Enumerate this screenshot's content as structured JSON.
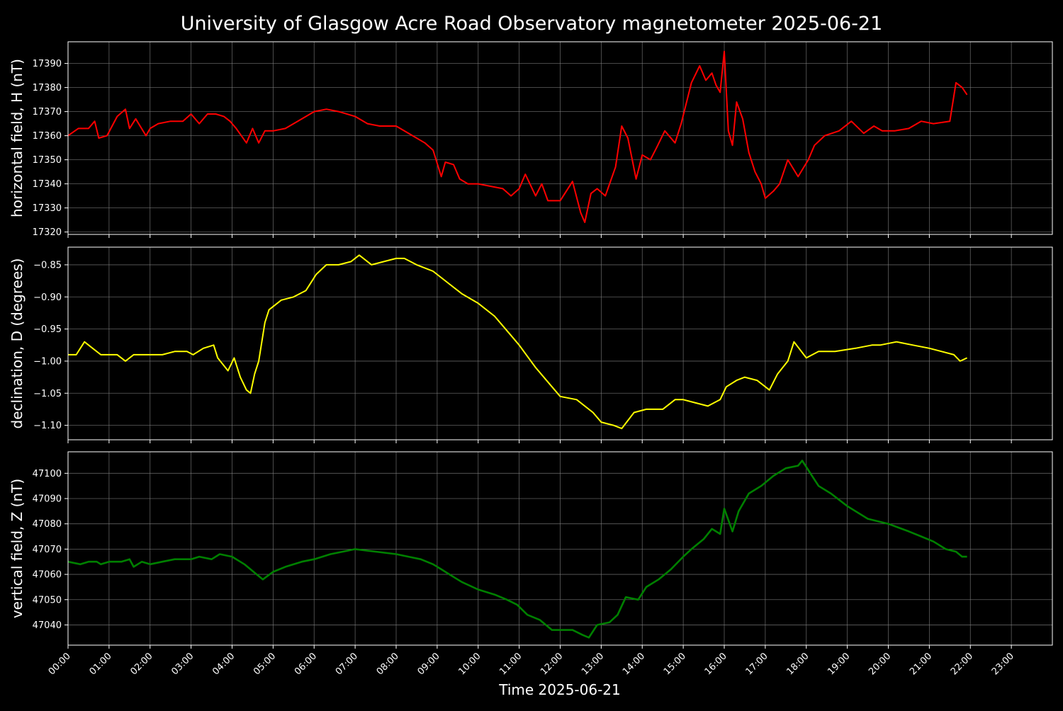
{
  "figure": {
    "title": "University of Glasgow Acre Road Observatory magnetometer 2025-06-21",
    "xlabel": "Time 2025-06-21",
    "background": "#000000",
    "foreground": "#ffffff",
    "grid_color": "#808080"
  },
  "chart_data": [
    {
      "type": "line",
      "ylabel": "horizontal field, H (nT)",
      "color": "#ff0000",
      "grid": true,
      "xlim": [
        0,
        24
      ],
      "ylim": [
        17319,
        17399
      ],
      "yticks": [
        17320,
        17330,
        17340,
        17350,
        17360,
        17370,
        17380,
        17390
      ],
      "xticks": [
        "00:00",
        "01:00",
        "02:00",
        "03:00",
        "04:00",
        "05:00",
        "06:00",
        "07:00",
        "08:00",
        "09:00",
        "10:00",
        "11:00",
        "12:00",
        "13:00",
        "14:00",
        "15:00",
        "16:00",
        "17:00",
        "18:00",
        "19:00",
        "20:00",
        "21:00",
        "22:00",
        "23:00"
      ],
      "x": [
        0.0,
        0.25,
        0.5,
        0.65,
        0.75,
        0.95,
        1.2,
        1.4,
        1.5,
        1.65,
        1.9,
        2.0,
        2.2,
        2.5,
        2.8,
        3.0,
        3.2,
        3.4,
        3.6,
        3.8,
        3.95,
        4.1,
        4.35,
        4.5,
        4.65,
        4.8,
        5.0,
        5.3,
        5.6,
        6.0,
        6.3,
        6.6,
        7.0,
        7.3,
        7.6,
        8.0,
        8.4,
        8.7,
        8.9,
        9.1,
        9.2,
        9.4,
        9.55,
        9.75,
        10.0,
        10.3,
        10.6,
        10.8,
        11.0,
        11.15,
        11.4,
        11.55,
        11.7,
        12.0,
        12.3,
        12.5,
        12.6,
        12.75,
        12.9,
        13.1,
        13.35,
        13.5,
        13.65,
        13.85,
        14.0,
        14.2,
        14.35,
        14.55,
        14.8,
        14.95,
        15.2,
        15.4,
        15.55,
        15.7,
        15.8,
        15.9,
        16.0,
        16.1,
        16.2,
        16.3,
        16.45,
        16.6,
        16.75,
        16.9,
        17.0,
        17.2,
        17.35,
        17.55,
        17.8,
        18.05,
        18.2,
        18.45,
        18.8,
        19.1,
        19.4,
        19.65,
        19.85,
        20.15,
        20.5,
        20.8,
        21.1,
        21.5,
        21.65,
        21.8,
        21.92
      ],
      "values": [
        17360,
        17363,
        17363,
        17366,
        17359,
        17360,
        17368,
        17371,
        17363,
        17367,
        17360,
        17363,
        17365,
        17366,
        17366,
        17369,
        17365,
        17369,
        17369,
        17368,
        17366,
        17363,
        17357,
        17363,
        17357,
        17362,
        17362,
        17363,
        17366,
        17370,
        17371,
        17370,
        17368,
        17365,
        17364,
        17364,
        17360,
        17357,
        17354,
        17343,
        17349,
        17348,
        17342,
        17340,
        17340,
        17339,
        17338,
        17335,
        17338,
        17344,
        17335,
        17340,
        17333,
        17333,
        17341,
        17328,
        17324,
        17336,
        17338,
        17335,
        17347,
        17364,
        17359,
        17342,
        17352,
        17350,
        17355,
        17362,
        17357,
        17365,
        17382,
        17389,
        17383,
        17386,
        17381,
        17378,
        17395,
        17362,
        17356,
        17374,
        17367,
        17353,
        17345,
        17340,
        17334,
        17337,
        17340,
        17350,
        17343,
        17350,
        17356,
        17360,
        17362,
        17366,
        17361,
        17364,
        17362,
        17362,
        17363,
        17366,
        17365,
        17366,
        17382,
        17380,
        17377
      ]
    },
    {
      "type": "line",
      "ylabel": "declination, D (degrees)",
      "color": "#ffff00",
      "grid": true,
      "xlim": [
        0,
        24
      ],
      "ylim": [
        -1.1225,
        -0.8225
      ],
      "yticks": [
        -1.1,
        -1.05,
        -1.0,
        -0.95,
        -0.9,
        -0.85
      ],
      "yticklabels": [
        "−1.10",
        "−1.05",
        "−1.00",
        "−0.95",
        "−0.90",
        "−0.85"
      ],
      "xticks": [
        "00:00",
        "01:00",
        "02:00",
        "03:00",
        "04:00",
        "05:00",
        "06:00",
        "07:00",
        "08:00",
        "09:00",
        "10:00",
        "11:00",
        "12:00",
        "13:00",
        "14:00",
        "15:00",
        "16:00",
        "17:00",
        "18:00",
        "19:00",
        "20:00",
        "21:00",
        "22:00",
        "23:00"
      ],
      "x": [
        0.0,
        0.2,
        0.4,
        0.6,
        0.8,
        1.0,
        1.2,
        1.4,
        1.6,
        1.8,
        2.0,
        2.3,
        2.6,
        2.9,
        3.05,
        3.3,
        3.55,
        3.65,
        3.9,
        4.05,
        4.2,
        4.35,
        4.45,
        4.55,
        4.65,
        4.8,
        4.9,
        5.2,
        5.5,
        5.8,
        5.95,
        6.05,
        6.3,
        6.6,
        6.9,
        7.1,
        7.4,
        7.7,
        8.0,
        8.2,
        8.5,
        8.9,
        9.3,
        9.6,
        10.0,
        10.4,
        10.8,
        11.0,
        11.4,
        11.8,
        12.0,
        12.4,
        12.8,
        13.0,
        13.3,
        13.5,
        13.8,
        14.1,
        14.5,
        14.8,
        15.0,
        15.3,
        15.6,
        15.9,
        16.05,
        16.3,
        16.5,
        16.8,
        17.1,
        17.3,
        17.55,
        17.7,
        18.0,
        18.3,
        18.7,
        19.2,
        19.6,
        19.8,
        20.2,
        20.6,
        21.0,
        21.3,
        21.6,
        21.75,
        21.92
      ],
      "values": [
        -0.99,
        -0.99,
        -0.97,
        -0.98,
        -0.99,
        -0.99,
        -0.99,
        -1.0,
        -0.99,
        -0.99,
        -0.99,
        -0.99,
        -0.985,
        -0.985,
        -0.99,
        -0.98,
        -0.975,
        -0.995,
        -1.015,
        -0.995,
        -1.025,
        -1.045,
        -1.05,
        -1.02,
        -1.0,
        -0.94,
        -0.92,
        -0.905,
        -0.9,
        -0.89,
        -0.875,
        -0.865,
        -0.85,
        -0.85,
        -0.845,
        -0.835,
        -0.85,
        -0.845,
        -0.84,
        -0.84,
        -0.85,
        -0.86,
        -0.88,
        -0.895,
        -0.91,
        -0.93,
        -0.96,
        -0.975,
        -1.01,
        -1.04,
        -1.055,
        -1.06,
        -1.08,
        -1.095,
        -1.1,
        -1.105,
        -1.08,
        -1.075,
        -1.075,
        -1.06,
        -1.06,
        -1.065,
        -1.07,
        -1.06,
        -1.04,
        -1.03,
        -1.025,
        -1.03,
        -1.045,
        -1.02,
        -1.0,
        -0.97,
        -0.995,
        -0.985,
        -0.985,
        -0.98,
        -0.975,
        -0.975,
        -0.97,
        -0.975,
        -0.98,
        -0.985,
        -0.99,
        -1.0,
        -0.995
      ]
    },
    {
      "type": "line",
      "ylabel": "vertical field, Z (nT)",
      "color": "#008000",
      "grid": true,
      "xlim": [
        0,
        24
      ],
      "ylim": [
        47032,
        47108.5
      ],
      "yticks": [
        47040,
        47050,
        47060,
        47070,
        47080,
        47090,
        47100
      ],
      "xticks": [
        "00:00",
        "01:00",
        "02:00",
        "03:00",
        "04:00",
        "05:00",
        "06:00",
        "07:00",
        "08:00",
        "09:00",
        "10:00",
        "11:00",
        "12:00",
        "13:00",
        "14:00",
        "15:00",
        "16:00",
        "17:00",
        "18:00",
        "19:00",
        "20:00",
        "21:00",
        "22:00",
        "23:00"
      ],
      "x": [
        0.0,
        0.3,
        0.5,
        0.7,
        0.8,
        1.0,
        1.3,
        1.5,
        1.6,
        1.8,
        2.0,
        2.3,
        2.6,
        3.0,
        3.2,
        3.5,
        3.7,
        4.0,
        4.3,
        4.6,
        4.75,
        5.0,
        5.3,
        5.7,
        6.0,
        6.4,
        6.7,
        7.0,
        7.5,
        8.0,
        8.3,
        8.6,
        8.9,
        9.1,
        9.3,
        9.6,
        10.0,
        10.4,
        10.7,
        10.95,
        11.2,
        11.5,
        11.8,
        12.1,
        12.3,
        12.55,
        12.7,
        12.9,
        13.2,
        13.4,
        13.6,
        13.9,
        14.1,
        14.4,
        14.7,
        15.0,
        15.2,
        15.5,
        15.7,
        15.8,
        15.9,
        16.0,
        16.2,
        16.35,
        16.6,
        16.9,
        17.2,
        17.5,
        17.8,
        17.9,
        18.1,
        18.3,
        18.6,
        19.0,
        19.5,
        20.0,
        20.5,
        20.8,
        21.1,
        21.4,
        21.65,
        21.8,
        21.92
      ],
      "values": [
        47065,
        47064,
        47065,
        47065,
        47064,
        47065,
        47065,
        47066,
        47063,
        47065,
        47064,
        47065,
        47066,
        47066,
        47067,
        47066,
        47068,
        47067,
        47064,
        47060,
        47058,
        47061,
        47063,
        47065,
        47066,
        47068,
        47069,
        47070,
        47069,
        47068,
        47067,
        47066,
        47064,
        47062,
        47060,
        47057,
        47054,
        47052,
        47050,
        47048,
        47044,
        47042,
        47038,
        47038,
        47038,
        47036,
        47035,
        47040,
        47041,
        47044,
        47051,
        47050,
        47055,
        47058,
        47062,
        47067,
        47070,
        47074,
        47078,
        47077,
        47076,
        47086,
        47077,
        47085,
        47092,
        47095,
        47099,
        47102,
        47103,
        47105,
        47100,
        47095,
        47092,
        47087,
        47082,
        47080,
        47077,
        47075,
        47073,
        47070,
        47069,
        47067,
        47067
      ]
    }
  ]
}
